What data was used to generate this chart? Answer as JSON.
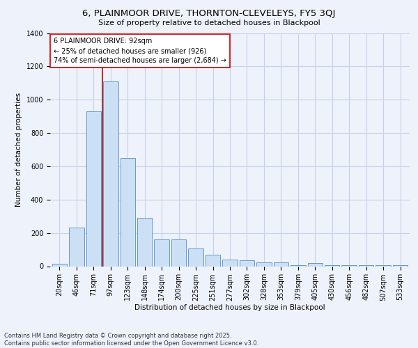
{
  "title": "6, PLAINMOOR DRIVE, THORNTON-CLEVELEYS, FY5 3QJ",
  "subtitle": "Size of property relative to detached houses in Blackpool",
  "xlabel": "Distribution of detached houses by size in Blackpool",
  "ylabel": "Number of detached properties",
  "categories": [
    "20sqm",
    "46sqm",
    "71sqm",
    "97sqm",
    "123sqm",
    "148sqm",
    "174sqm",
    "200sqm",
    "225sqm",
    "251sqm",
    "277sqm",
    "302sqm",
    "328sqm",
    "353sqm",
    "379sqm",
    "405sqm",
    "430sqm",
    "456sqm",
    "482sqm",
    "507sqm",
    "533sqm"
  ],
  "values": [
    15,
    230,
    930,
    1110,
    650,
    290,
    160,
    160,
    105,
    70,
    38,
    35,
    22,
    22,
    5,
    20,
    5,
    5,
    5,
    5,
    8
  ],
  "bar_color": "#cce0f5",
  "bar_edge_color": "#6699cc",
  "vline_color": "#cc0000",
  "vline_x_idx": 2.5,
  "annotation_text": "6 PLAINMOOR DRIVE: 92sqm\n← 25% of detached houses are smaller (926)\n74% of semi-detached houses are larger (2,684) →",
  "annotation_box_color": "#ffffff",
  "annotation_box_edge": "#cc0000",
  "footer_text": "Contains HM Land Registry data © Crown copyright and database right 2025.\nContains public sector information licensed under the Open Government Licence v3.0.",
  "bg_color": "#eef2fb",
  "grid_color": "#c8d0e8",
  "ylim": [
    0,
    1400
  ],
  "yticks": [
    0,
    200,
    400,
    600,
    800,
    1000,
    1200,
    1400
  ],
  "title_fontsize": 9.5,
  "subtitle_fontsize": 8,
  "axis_label_fontsize": 7.5,
  "tick_fontsize": 7,
  "annotation_fontsize": 7,
  "footer_fontsize": 6
}
